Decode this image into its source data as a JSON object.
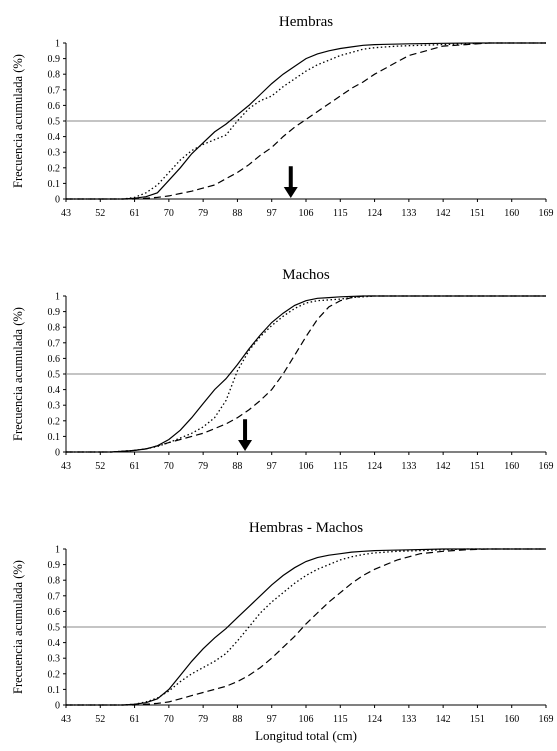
{
  "figure": {
    "xlabel": "Longitud total (cm)"
  },
  "chart_data": [
    {
      "type": "line",
      "title": "Hembras",
      "ylabel": "Frecuencia acumulada (%)",
      "x_ticks": [
        "43",
        "52",
        "61",
        "70",
        "79",
        "88",
        "97",
        "106",
        "115",
        "124",
        "133",
        "142",
        "151",
        "160",
        "169"
      ],
      "y_ticks": [
        "0",
        "0.1",
        "0.2",
        "0.3",
        "0.4",
        "0.5",
        "0.6",
        "0.7",
        "0.8",
        "0.9",
        "1"
      ],
      "xlim": [
        43,
        169
      ],
      "ylim": [
        0,
        1
      ],
      "reference_line": 0.5,
      "arrow_x": 102,
      "series": [
        {
          "style": "solid",
          "x": [
            43,
            52,
            55,
            58,
            61,
            64,
            67,
            70,
            73,
            76,
            79,
            82,
            85,
            88,
            91,
            94,
            97,
            100,
            103,
            106,
            109,
            112,
            115,
            118,
            121,
            124,
            133,
            142,
            151,
            160,
            169
          ],
          "values": [
            0,
            0,
            0,
            0,
            0.005,
            0.015,
            0.04,
            0.12,
            0.2,
            0.29,
            0.36,
            0.43,
            0.48,
            0.54,
            0.6,
            0.67,
            0.74,
            0.8,
            0.85,
            0.9,
            0.93,
            0.95,
            0.965,
            0.975,
            0.985,
            0.99,
            0.995,
            0.998,
            1,
            1,
            1
          ]
        },
        {
          "style": "dotted",
          "x": [
            43,
            52,
            55,
            58,
            61,
            64,
            67,
            70,
            73,
            76,
            79,
            82,
            85,
            88,
            91,
            94,
            97,
            100,
            103,
            106,
            109,
            112,
            115,
            118,
            121,
            124,
            130,
            136,
            142,
            148,
            154,
            169
          ],
          "values": [
            0,
            0,
            0,
            0,
            0.01,
            0.04,
            0.09,
            0.17,
            0.25,
            0.31,
            0.35,
            0.38,
            0.41,
            0.5,
            0.58,
            0.63,
            0.66,
            0.72,
            0.77,
            0.82,
            0.86,
            0.89,
            0.92,
            0.94,
            0.96,
            0.97,
            0.98,
            0.985,
            0.99,
            0.995,
            1,
            1
          ]
        },
        {
          "style": "dashed",
          "x": [
            43,
            52,
            58,
            61,
            64,
            67,
            70,
            73,
            76,
            79,
            82,
            85,
            88,
            91,
            94,
            97,
            100,
            103,
            106,
            109,
            112,
            115,
            118,
            121,
            124,
            127,
            130,
            133,
            136,
            139,
            142,
            148,
            154,
            169
          ],
          "values": [
            0,
            0,
            0,
            0,
            0.005,
            0.01,
            0.02,
            0.035,
            0.05,
            0.07,
            0.09,
            0.13,
            0.17,
            0.22,
            0.28,
            0.33,
            0.4,
            0.46,
            0.51,
            0.56,
            0.61,
            0.66,
            0.71,
            0.75,
            0.8,
            0.84,
            0.88,
            0.92,
            0.94,
            0.96,
            0.98,
            0.99,
            1,
            1
          ]
        }
      ]
    },
    {
      "type": "line",
      "title": "Machos",
      "ylabel": "Frecuencia acumulada (%)",
      "x_ticks": [
        "43",
        "52",
        "61",
        "70",
        "79",
        "88",
        "97",
        "106",
        "115",
        "124",
        "133",
        "142",
        "151",
        "160",
        "169"
      ],
      "y_ticks": [
        "0",
        "0.1",
        "0.2",
        "0.3",
        "0.4",
        "0.5",
        "0.6",
        "0.7",
        "0.8",
        "0.9",
        "1"
      ],
      "xlim": [
        43,
        169
      ],
      "ylim": [
        0,
        1
      ],
      "reference_line": 0.5,
      "arrow_x": 90,
      "series": [
        {
          "style": "solid",
          "x": [
            43,
            52,
            55,
            58,
            61,
            64,
            67,
            70,
            73,
            76,
            79,
            82,
            85,
            88,
            91,
            94,
            97,
            100,
            103,
            106,
            109,
            112,
            115,
            121,
            124,
            133,
            169
          ],
          "values": [
            0,
            0,
            0,
            0.005,
            0.01,
            0.02,
            0.04,
            0.08,
            0.14,
            0.22,
            0.31,
            0.4,
            0.47,
            0.56,
            0.66,
            0.75,
            0.83,
            0.89,
            0.94,
            0.97,
            0.985,
            0.99,
            0.995,
            1,
            1,
            1,
            1
          ]
        },
        {
          "style": "dotted",
          "x": [
            43,
            52,
            55,
            58,
            61,
            64,
            67,
            70,
            73,
            76,
            79,
            82,
            85,
            88,
            91,
            94,
            97,
            100,
            103,
            106,
            109,
            112,
            115,
            118,
            121,
            124,
            169
          ],
          "values": [
            0,
            0,
            0,
            0.005,
            0.01,
            0.02,
            0.035,
            0.06,
            0.09,
            0.12,
            0.16,
            0.22,
            0.33,
            0.52,
            0.65,
            0.74,
            0.81,
            0.87,
            0.92,
            0.955,
            0.97,
            0.975,
            0.98,
            0.99,
            0.995,
            1,
            1
          ]
        },
        {
          "style": "dashed",
          "x": [
            43,
            52,
            55,
            58,
            61,
            64,
            67,
            70,
            73,
            76,
            79,
            82,
            85,
            88,
            91,
            94,
            97,
            100,
            103,
            106,
            109,
            112,
            115,
            118,
            121,
            124,
            133,
            169
          ],
          "values": [
            0,
            0,
            0,
            0.005,
            0.01,
            0.02,
            0.04,
            0.06,
            0.08,
            0.1,
            0.12,
            0.15,
            0.18,
            0.22,
            0.27,
            0.33,
            0.4,
            0.5,
            0.62,
            0.74,
            0.85,
            0.93,
            0.97,
            0.99,
            1,
            1,
            1,
            1
          ]
        }
      ]
    },
    {
      "type": "line",
      "title": "Hembras - Machos",
      "ylabel": "Frecuencia acumulada (%)",
      "x_ticks": [
        "43",
        "52",
        "61",
        "70",
        "79",
        "88",
        "97",
        "106",
        "115",
        "124",
        "133",
        "142",
        "151",
        "160",
        "169"
      ],
      "y_ticks": [
        "0",
        "0.1",
        "0.2",
        "0.3",
        "0.4",
        "0.5",
        "0.6",
        "0.7",
        "0.8",
        "0.9",
        "1"
      ],
      "xlim": [
        43,
        169
      ],
      "ylim": [
        0,
        1
      ],
      "reference_line": 0.5,
      "series": [
        {
          "style": "solid",
          "x": [
            43,
            52,
            55,
            58,
            61,
            64,
            67,
            70,
            73,
            76,
            79,
            82,
            85,
            88,
            91,
            94,
            97,
            100,
            103,
            106,
            109,
            112,
            115,
            118,
            121,
            124,
            133,
            142,
            169
          ],
          "values": [
            0,
            0,
            0,
            0,
            0.005,
            0.015,
            0.04,
            0.1,
            0.19,
            0.28,
            0.36,
            0.43,
            0.49,
            0.56,
            0.63,
            0.7,
            0.77,
            0.83,
            0.88,
            0.92,
            0.945,
            0.96,
            0.97,
            0.98,
            0.985,
            0.99,
            0.995,
            1,
            1
          ]
        },
        {
          "style": "dotted",
          "x": [
            43,
            52,
            55,
            58,
            61,
            64,
            67,
            70,
            73,
            76,
            79,
            82,
            85,
            88,
            91,
            94,
            97,
            100,
            103,
            106,
            109,
            112,
            115,
            118,
            121,
            124,
            130,
            136,
            142,
            148,
            169
          ],
          "values": [
            0,
            0,
            0,
            0,
            0.005,
            0.02,
            0.045,
            0.09,
            0.15,
            0.2,
            0.24,
            0.28,
            0.33,
            0.41,
            0.5,
            0.59,
            0.66,
            0.72,
            0.78,
            0.83,
            0.87,
            0.9,
            0.93,
            0.95,
            0.965,
            0.975,
            0.985,
            0.99,
            0.995,
            1,
            1
          ]
        },
        {
          "style": "dashed",
          "x": [
            43,
            52,
            58,
            61,
            64,
            67,
            70,
            73,
            76,
            79,
            82,
            85,
            88,
            91,
            94,
            97,
            100,
            103,
            106,
            109,
            112,
            115,
            118,
            121,
            124,
            127,
            130,
            133,
            136,
            142,
            148,
            154,
            169
          ],
          "values": [
            0,
            0,
            0,
            0,
            0.005,
            0.01,
            0.02,
            0.04,
            0.06,
            0.08,
            0.1,
            0.12,
            0.15,
            0.19,
            0.24,
            0.3,
            0.37,
            0.44,
            0.52,
            0.59,
            0.66,
            0.72,
            0.78,
            0.83,
            0.87,
            0.9,
            0.93,
            0.95,
            0.97,
            0.985,
            0.995,
            1,
            1
          ]
        }
      ]
    }
  ]
}
